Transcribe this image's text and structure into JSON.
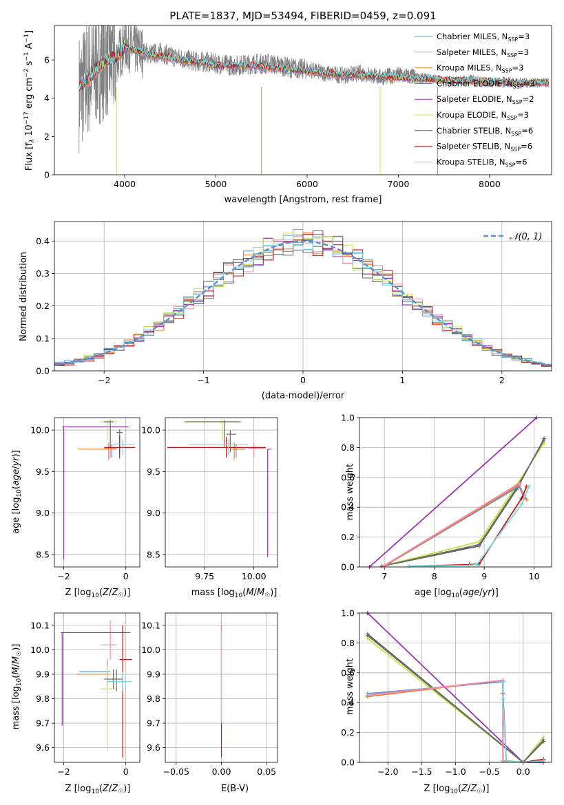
{
  "palette": {
    "Chabrier MILES": "#5b9bd5",
    "Salpeter MILES": "#f28ab8",
    "Kroupa MILES": "#f07f2e",
    "Chabrier ELODIE": "#6b6b6b",
    "Salpeter ELODIE": "#9b30b5",
    "Kroupa ELODIE": "#c5e640",
    "Chabrier STELIB": "#5a6e58",
    "Salpeter STELIB": "#c81414",
    "Kroupa STELIB": "#78d8e0"
  },
  "chart_data": [
    {
      "id": "spectrum",
      "type": "line",
      "title": "PLATE=1837, MJD=53494, FIBERID=0459, z=0.091",
      "xlabel": "wavelength [Angstrom, rest frame]",
      "ylabel": "Flux [f_λ 10^-17 erg cm^-2 s^-1 A^-1]",
      "ylabel_parts": {
        "a": "Flux [f",
        "b": "λ",
        "c": "10",
        "d": "−17",
        "e": " erg cm",
        "f": "−2",
        "g": " s",
        "h": "−1",
        "i": " A",
        "j": "−1",
        "k": "]"
      },
      "xlim": [
        3230,
        8680
      ],
      "ylim": [
        0,
        7.8
      ],
      "xticks": [
        4000,
        5000,
        6000,
        7000,
        8000
      ],
      "yticks": [
        0,
        2,
        4,
        6
      ],
      "data_gray": {
        "x": [
          3500,
          3600,
          3700,
          3800,
          3900,
          4000,
          4100,
          4200,
          4300,
          4400,
          4500,
          4600,
          4700,
          4800,
          4900,
          5000,
          5200,
          5400,
          5600,
          5800,
          6000,
          6200,
          6400,
          6600,
          6800,
          7000,
          7200,
          7400,
          7600,
          7800,
          8000,
          8200,
          8400,
          8600
        ],
        "y": [
          4.3,
          5.1,
          5.7,
          6.1,
          6.0,
          6.8,
          6.6,
          6.4,
          6.3,
          6.4,
          6.2,
          6.1,
          6.0,
          5.9,
          5.9,
          5.8,
          5.7,
          5.8,
          5.8,
          5.6,
          5.5,
          5.3,
          5.2,
          5.3,
          5.1,
          5.2,
          5.1,
          5.0,
          4.9,
          5.0,
          4.8,
          4.9,
          4.8,
          4.8
        ]
      },
      "models": {
        "x": [
          3500,
          3600,
          3700,
          3800,
          3900,
          4000,
          4100,
          4200,
          4300,
          4400,
          4500,
          4600,
          4700,
          4800,
          4900,
          5000,
          5200,
          5400,
          5600,
          5800,
          6000,
          6200,
          6400,
          6600,
          6800,
          7000,
          7200,
          7400,
          7600,
          7800,
          8000,
          8200,
          8400,
          8600
        ],
        "y": [
          4.6,
          5.0,
          5.6,
          6.0,
          6.1,
          6.7,
          6.5,
          6.4,
          6.2,
          6.2,
          6.1,
          6.0,
          5.9,
          5.9,
          5.8,
          5.7,
          5.7,
          5.7,
          5.6,
          5.5,
          5.4,
          5.3,
          5.2,
          5.2,
          5.1,
          5.1,
          5.0,
          5.0,
          4.9,
          4.9,
          4.9,
          4.8,
          4.8,
          4.8
        ]
      },
      "legend": [
        {
          "model": "Chabrier MILES",
          "n": "3"
        },
        {
          "model": "Salpeter MILES",
          "n": "3"
        },
        {
          "model": "Kroupa MILES",
          "n": "3"
        },
        {
          "model": "Chabrier ELODIE",
          "n": "3"
        },
        {
          "model": "Salpeter ELODIE",
          "n": "2"
        },
        {
          "model": "Kroupa ELODIE",
          "n": "3"
        },
        {
          "model": "Chabrier STELIB",
          "n": "6"
        },
        {
          "model": "Salpeter STELIB",
          "n": "6"
        },
        {
          "model": "Kroupa STELIB",
          "n": "6"
        }
      ],
      "legend_n_prefix": "N",
      "legend_n_sub": "SSP"
    },
    {
      "id": "residuals",
      "type": "line",
      "xlabel": "(data-model)/error",
      "ylabel": "Normed distribution",
      "xlim": [
        -2.5,
        2.5
      ],
      "ylim": [
        0,
        0.46
      ],
      "xticks": [
        -2,
        -1,
        0,
        1,
        2
      ],
      "xticklabels": [
        "−2",
        "−1",
        "0",
        "1",
        "2"
      ],
      "yticks": [
        0.0,
        0.1,
        0.2,
        0.3,
        0.4
      ],
      "yticklabels": [
        "0.0",
        "0.1",
        "0.2",
        "0.3",
        "0.4"
      ],
      "gaussian_label": "𝒩(0, 1)",
      "gaussian_color": "#5b8fd6",
      "bin_edges_start": -2.5,
      "bin_width": 0.1
    },
    {
      "id": "age_vs_Z",
      "type": "scatter",
      "xlabel": "Z [log10(Z/Z☉)]",
      "ylabel": "age [log10(age/yr)]",
      "xlim": [
        -2.3,
        0.45
      ],
      "ylim": [
        8.35,
        10.15
      ],
      "xticks": [
        -2,
        0
      ],
      "xticklabels": [
        "−2",
        "0"
      ],
      "yticks": [
        8.5,
        9.0,
        9.5,
        10.0
      ],
      "yticklabels": [
        "8.5",
        "9.0",
        "9.5",
        "10.0"
      ],
      "points": [
        {
          "model": "Chabrier MILES",
          "x": -0.45,
          "y": 9.77,
          "xerr": [
            0.2,
            0.15
          ],
          "yerr": [
            0.1,
            0.06
          ]
        },
        {
          "model": "Salpeter MILES",
          "x": -0.5,
          "y": 9.78,
          "xerr": [
            0.2,
            0.2
          ],
          "yerr": [
            0.12,
            0.06
          ]
        },
        {
          "model": "Kroupa MILES",
          "x": -0.55,
          "y": 9.77,
          "xerr": [
            1.0,
            0.2
          ],
          "yerr": [
            0.13,
            0.08
          ]
        },
        {
          "model": "Chabrier ELODIE",
          "x": -0.2,
          "y": 9.97,
          "xerr": [
            0.1,
            0.1
          ],
          "yerr": [
            0.25,
            0.04
          ]
        },
        {
          "model": "Salpeter ELODIE",
          "x": -2.0,
          "y": 10.04,
          "xerr": [
            0.05,
            2.1
          ],
          "yerr": [
            1.6,
            0.0
          ]
        },
        {
          "model": "Kroupa ELODIE",
          "x": -0.6,
          "y": 10.1,
          "xerr": [
            0.2,
            0.3
          ],
          "yerr": [
            0.22,
            0.02
          ]
        },
        {
          "model": "Chabrier STELIB",
          "x": -0.5,
          "y": 10.1,
          "xerr": [
            0.2,
            0.1
          ],
          "yerr": [
            0.3,
            0.02
          ]
        },
        {
          "model": "Salpeter STELIB",
          "x": -0.2,
          "y": 9.79,
          "xerr": [
            0.5,
            0.5
          ],
          "yerr": [
            0.13,
            0.14
          ]
        },
        {
          "model": "Kroupa STELIB",
          "x": -0.1,
          "y": 9.83,
          "xerr": [
            0.5,
            0.4
          ],
          "yerr": [
            0.13,
            0.06
          ]
        }
      ]
    },
    {
      "id": "age_vs_mass",
      "type": "scatter",
      "xlabel": "mass [log10(M/M☉)]",
      "xlim": [
        9.55,
        10.12
      ],
      "ylim": [
        8.35,
        10.15
      ],
      "xticks": [
        9.75,
        10.0
      ],
      "xticklabels": [
        "9.75",
        "10.00"
      ],
      "yticks": [
        8.5,
        9.0,
        9.5,
        10.0
      ],
      "yticklabels": [
        "8.5",
        "9.0",
        "9.5",
        "10.0"
      ],
      "points": [
        {
          "model": "Chabrier MILES",
          "x": 9.91,
          "y": 9.77,
          "xerr": [
            0.02,
            0.05
          ],
          "yerr": [
            0.1,
            0.06
          ]
        },
        {
          "model": "Salpeter MILES",
          "x": 10.0,
          "y": 9.78,
          "xerr": [
            0.03,
            0.06
          ],
          "yerr": [
            0.1,
            0.06
          ]
        },
        {
          "model": "Kroupa MILES",
          "x": 9.9,
          "y": 9.77,
          "xerr": [
            0.02,
            0.05
          ],
          "yerr": [
            0.13,
            0.08
          ]
        },
        {
          "model": "Chabrier ELODIE",
          "x": 9.88,
          "y": 9.95,
          "xerr": [
            0.02,
            0.03
          ],
          "yerr": [
            0.22,
            0.05
          ]
        },
        {
          "model": "Salpeter ELODIE",
          "x": 10.07,
          "y": 9.77,
          "xerr": [
            0.0,
            0.02
          ],
          "yerr": [
            1.3,
            0.0
          ]
        },
        {
          "model": "Kroupa ELODIE",
          "x": 9.84,
          "y": 10.1,
          "xerr": [
            0.2,
            0.1
          ],
          "yerr": [
            0.22,
            0.02
          ]
        },
        {
          "model": "Chabrier STELIB",
          "x": 9.85,
          "y": 10.1,
          "xerr": [
            0.2,
            0.08
          ],
          "yerr": [
            0.3,
            0.02
          ]
        },
        {
          "model": "Salpeter STELIB",
          "x": 9.86,
          "y": 9.79,
          "xerr": [
            0.3,
            0.2
          ],
          "yerr": [
            0.12,
            0.13
          ]
        },
        {
          "model": "Kroupa STELIB",
          "x": 9.87,
          "y": 9.83,
          "xerr": [
            0.2,
            0.1
          ],
          "yerr": [
            0.13,
            0.06
          ]
        }
      ]
    },
    {
      "id": "massweight_vs_age",
      "type": "line",
      "xlabel": "age [log10(age/yr)]",
      "ylabel": "mass weight",
      "xlim": [
        6.5,
        10.35
      ],
      "ylim": [
        0,
        1.0
      ],
      "xticks": [
        7,
        8,
        9,
        10
      ],
      "xticklabels": [
        "7",
        "8",
        "9",
        "10"
      ],
      "yticks": [
        0.0,
        0.2,
        0.4,
        0.6,
        0.8,
        1.0
      ],
      "yticklabels": [
        "0.0",
        "0.2",
        "0.4",
        "0.6",
        "0.8",
        "1.0"
      ],
      "series": [
        {
          "model": "Salpeter ELODIE",
          "x": [
            6.7,
            10.05
          ],
          "y": [
            0.0,
            1.0
          ]
        },
        {
          "model": "Chabrier STELIB",
          "x": [
            6.95,
            8.9,
            9.65,
            10.2
          ],
          "y": [
            0.005,
            0.14,
            0.52,
            0.86
          ]
        },
        {
          "model": "Kroupa ELODIE",
          "x": [
            6.95,
            8.9,
            9.65,
            10.2
          ],
          "y": [
            0.005,
            0.17,
            0.55,
            0.83
          ]
        },
        {
          "model": "Chabrier ELODIE",
          "x": [
            6.95,
            8.9,
            9.65,
            10.2
          ],
          "y": [
            0.005,
            0.15,
            0.53,
            0.85
          ]
        },
        {
          "model": "Chabrier MILES",
          "x": [
            7.0,
            9.7,
            9.8
          ],
          "y": [
            0.005,
            0.54,
            0.46
          ]
        },
        {
          "model": "Kroupa MILES",
          "x": [
            7.0,
            9.7,
            9.85
          ],
          "y": [
            0.005,
            0.55,
            0.45
          ]
        },
        {
          "model": "Salpeter MILES",
          "x": [
            7.0,
            9.7,
            9.8
          ],
          "y": [
            0.01,
            0.56,
            0.47
          ]
        },
        {
          "model": "Salpeter STELIB",
          "x": [
            7.5,
            8.7,
            8.9,
            9.75,
            9.85
          ],
          "y": [
            0.005,
            0.015,
            0.02,
            0.46,
            0.54
          ]
        },
        {
          "model": "Kroupa STELIB",
          "x": [
            7.5,
            8.7,
            8.85,
            9.75,
            9.9
          ],
          "y": [
            0.005,
            0.01,
            0.015,
            0.42,
            0.54
          ]
        }
      ]
    },
    {
      "id": "mass_vs_Z",
      "type": "scatter",
      "xlabel": "Z [log10(Z/Z☉)]",
      "ylabel": "mass [log10(M/M☉)]",
      "xlim": [
        -2.3,
        0.45
      ],
      "ylim": [
        9.54,
        10.15
      ],
      "xticks": [
        -2,
        0
      ],
      "xticklabels": [
        "−2",
        "0"
      ],
      "yticks": [
        9.6,
        9.7,
        9.8,
        9.9,
        10.0,
        10.1
      ],
      "yticklabels": [
        "9.6",
        "9.7",
        "9.8",
        "9.9",
        "10.0",
        "10.1"
      ],
      "points": [
        {
          "model": "Chabrier MILES",
          "x": -0.6,
          "y": 9.91,
          "xerr": [
            0.9,
            0.1
          ],
          "yerr": [
            0.05,
            0.05
          ]
        },
        {
          "model": "Salpeter MILES",
          "x": -0.5,
          "y": 10.02,
          "xerr": [
            0.3,
            0.2
          ],
          "yerr": [
            0.06,
            0.1
          ]
        },
        {
          "model": "Kroupa MILES",
          "x": -0.6,
          "y": 9.9,
          "xerr": [
            1.0,
            0.1
          ],
          "yerr": [
            0.05,
            0.05
          ]
        },
        {
          "model": "Chabrier ELODIE",
          "x": -0.3,
          "y": 9.87,
          "xerr": [
            0.3,
            0.3
          ],
          "yerr": [
            0.04,
            0.05
          ]
        },
        {
          "model": "Salpeter ELODIE",
          "x": -2.05,
          "y": 10.07,
          "xerr": [
            0.05,
            2.2
          ],
          "yerr": [
            0.38,
            0.0
          ]
        },
        {
          "model": "Kroupa ELODIE",
          "x": -0.6,
          "y": 9.84,
          "xerr": [
            0.2,
            0.2
          ],
          "yerr": [
            0.25,
            0.1
          ]
        },
        {
          "model": "Chabrier STELIB",
          "x": -0.4,
          "y": 9.88,
          "xerr": [
            0.3,
            0.3
          ],
          "yerr": [
            0.04,
            0.04
          ]
        },
        {
          "model": "Salpeter STELIB",
          "x": -0.1,
          "y": 9.96,
          "xerr": [
            0.1,
            0.3
          ],
          "yerr": [
            0.4,
            0.14
          ]
        },
        {
          "model": "Kroupa STELIB",
          "x": -0.1,
          "y": 9.87,
          "xerr": [
            0.5,
            0.3
          ],
          "yerr": [
            0.04,
            0.04
          ]
        }
      ]
    },
    {
      "id": "mass_vs_ebv",
      "type": "scatter",
      "xlabel": "E(B-V)",
      "xlim": [
        -0.062,
        0.062
      ],
      "ylim": [
        9.54,
        10.15
      ],
      "xticks": [
        -0.05,
        0.0,
        0.05
      ],
      "xticklabels": [
        "−0.05",
        "0.00",
        "0.05"
      ],
      "yticks": [
        9.6,
        9.7,
        9.8,
        9.9,
        10.0,
        10.1
      ],
      "yticklabels": [
        "9.6",
        "9.7",
        "9.8",
        "9.9",
        "10.0",
        "10.1"
      ],
      "vlines": [
        {
          "model": "Salpeter STELIB",
          "x": 0.0,
          "y0": 9.56,
          "y1": 10.1
        },
        {
          "model": "Salpeter MILES",
          "x": 0.0,
          "y0": 9.9,
          "y1": 10.12
        },
        {
          "model": "Kroupa STELIB",
          "x": 0.0,
          "y0": 9.7,
          "y1": 10.08
        }
      ]
    },
    {
      "id": "massweight_vs_Z",
      "type": "line",
      "xlabel": "Z [log10(Z/Z☉)]",
      "ylabel": "mass weight",
      "xlim": [
        -2.42,
        0.42
      ],
      "ylim": [
        0,
        1.0
      ],
      "xticks": [
        -2.0,
        -1.5,
        -1.0,
        -0.5,
        0.0
      ],
      "xticklabels": [
        "−2.0",
        "−1.5",
        "−1.0",
        "−0.5",
        "0.0"
      ],
      "yticks": [
        0.0,
        0.2,
        0.4,
        0.6,
        0.8,
        1.0
      ],
      "yticklabels": [
        "0.0",
        "0.2",
        "0.4",
        "0.6",
        "0.8",
        "1.0"
      ],
      "series": [
        {
          "model": "Salpeter ELODIE",
          "x": [
            -2.3,
            0.0,
            0.3
          ],
          "y": [
            1.0,
            0.0,
            0.0
          ]
        },
        {
          "model": "Chabrier STELIB",
          "x": [
            -2.3,
            0.0,
            0.3
          ],
          "y": [
            0.86,
            0.0,
            0.14
          ]
        },
        {
          "model": "Kroupa ELODIE",
          "x": [
            -2.3,
            0.0,
            0.3
          ],
          "y": [
            0.83,
            0.0,
            0.17
          ]
        },
        {
          "model": "Chabrier ELODIE",
          "x": [
            -2.3,
            0.0,
            0.3
          ],
          "y": [
            0.85,
            0.0,
            0.15
          ]
        },
        {
          "model": "Chabrier MILES",
          "x": [
            -2.3,
            -0.3,
            -0.3,
            0.0,
            0.3
          ],
          "y": [
            0.46,
            0.54,
            0.01,
            0.0,
            0.01
          ]
        },
        {
          "model": "Kroupa MILES",
          "x": [
            -2.3,
            -0.3,
            -0.3,
            0.0,
            0.3
          ],
          "y": [
            0.44,
            0.55,
            0.01,
            0.0,
            0.01
          ]
        },
        {
          "model": "Salpeter MILES",
          "x": [
            -2.3,
            -0.3,
            -0.3,
            0.0,
            0.3
          ],
          "y": [
            0.45,
            0.55,
            0.01,
            0.0,
            0.02
          ]
        },
        {
          "model": "Salpeter STELIB",
          "x": [
            -0.3,
            -0.3,
            -0.25,
            0.0,
            0.3
          ],
          "y": [
            0.54,
            0.46,
            0.01,
            0.0,
            0.02
          ]
        },
        {
          "model": "Kroupa STELIB",
          "x": [
            -0.3,
            -0.3,
            -0.25,
            0.0,
            0.3
          ],
          "y": [
            0.54,
            0.42,
            0.01,
            0.0,
            0.01
          ]
        }
      ]
    }
  ]
}
